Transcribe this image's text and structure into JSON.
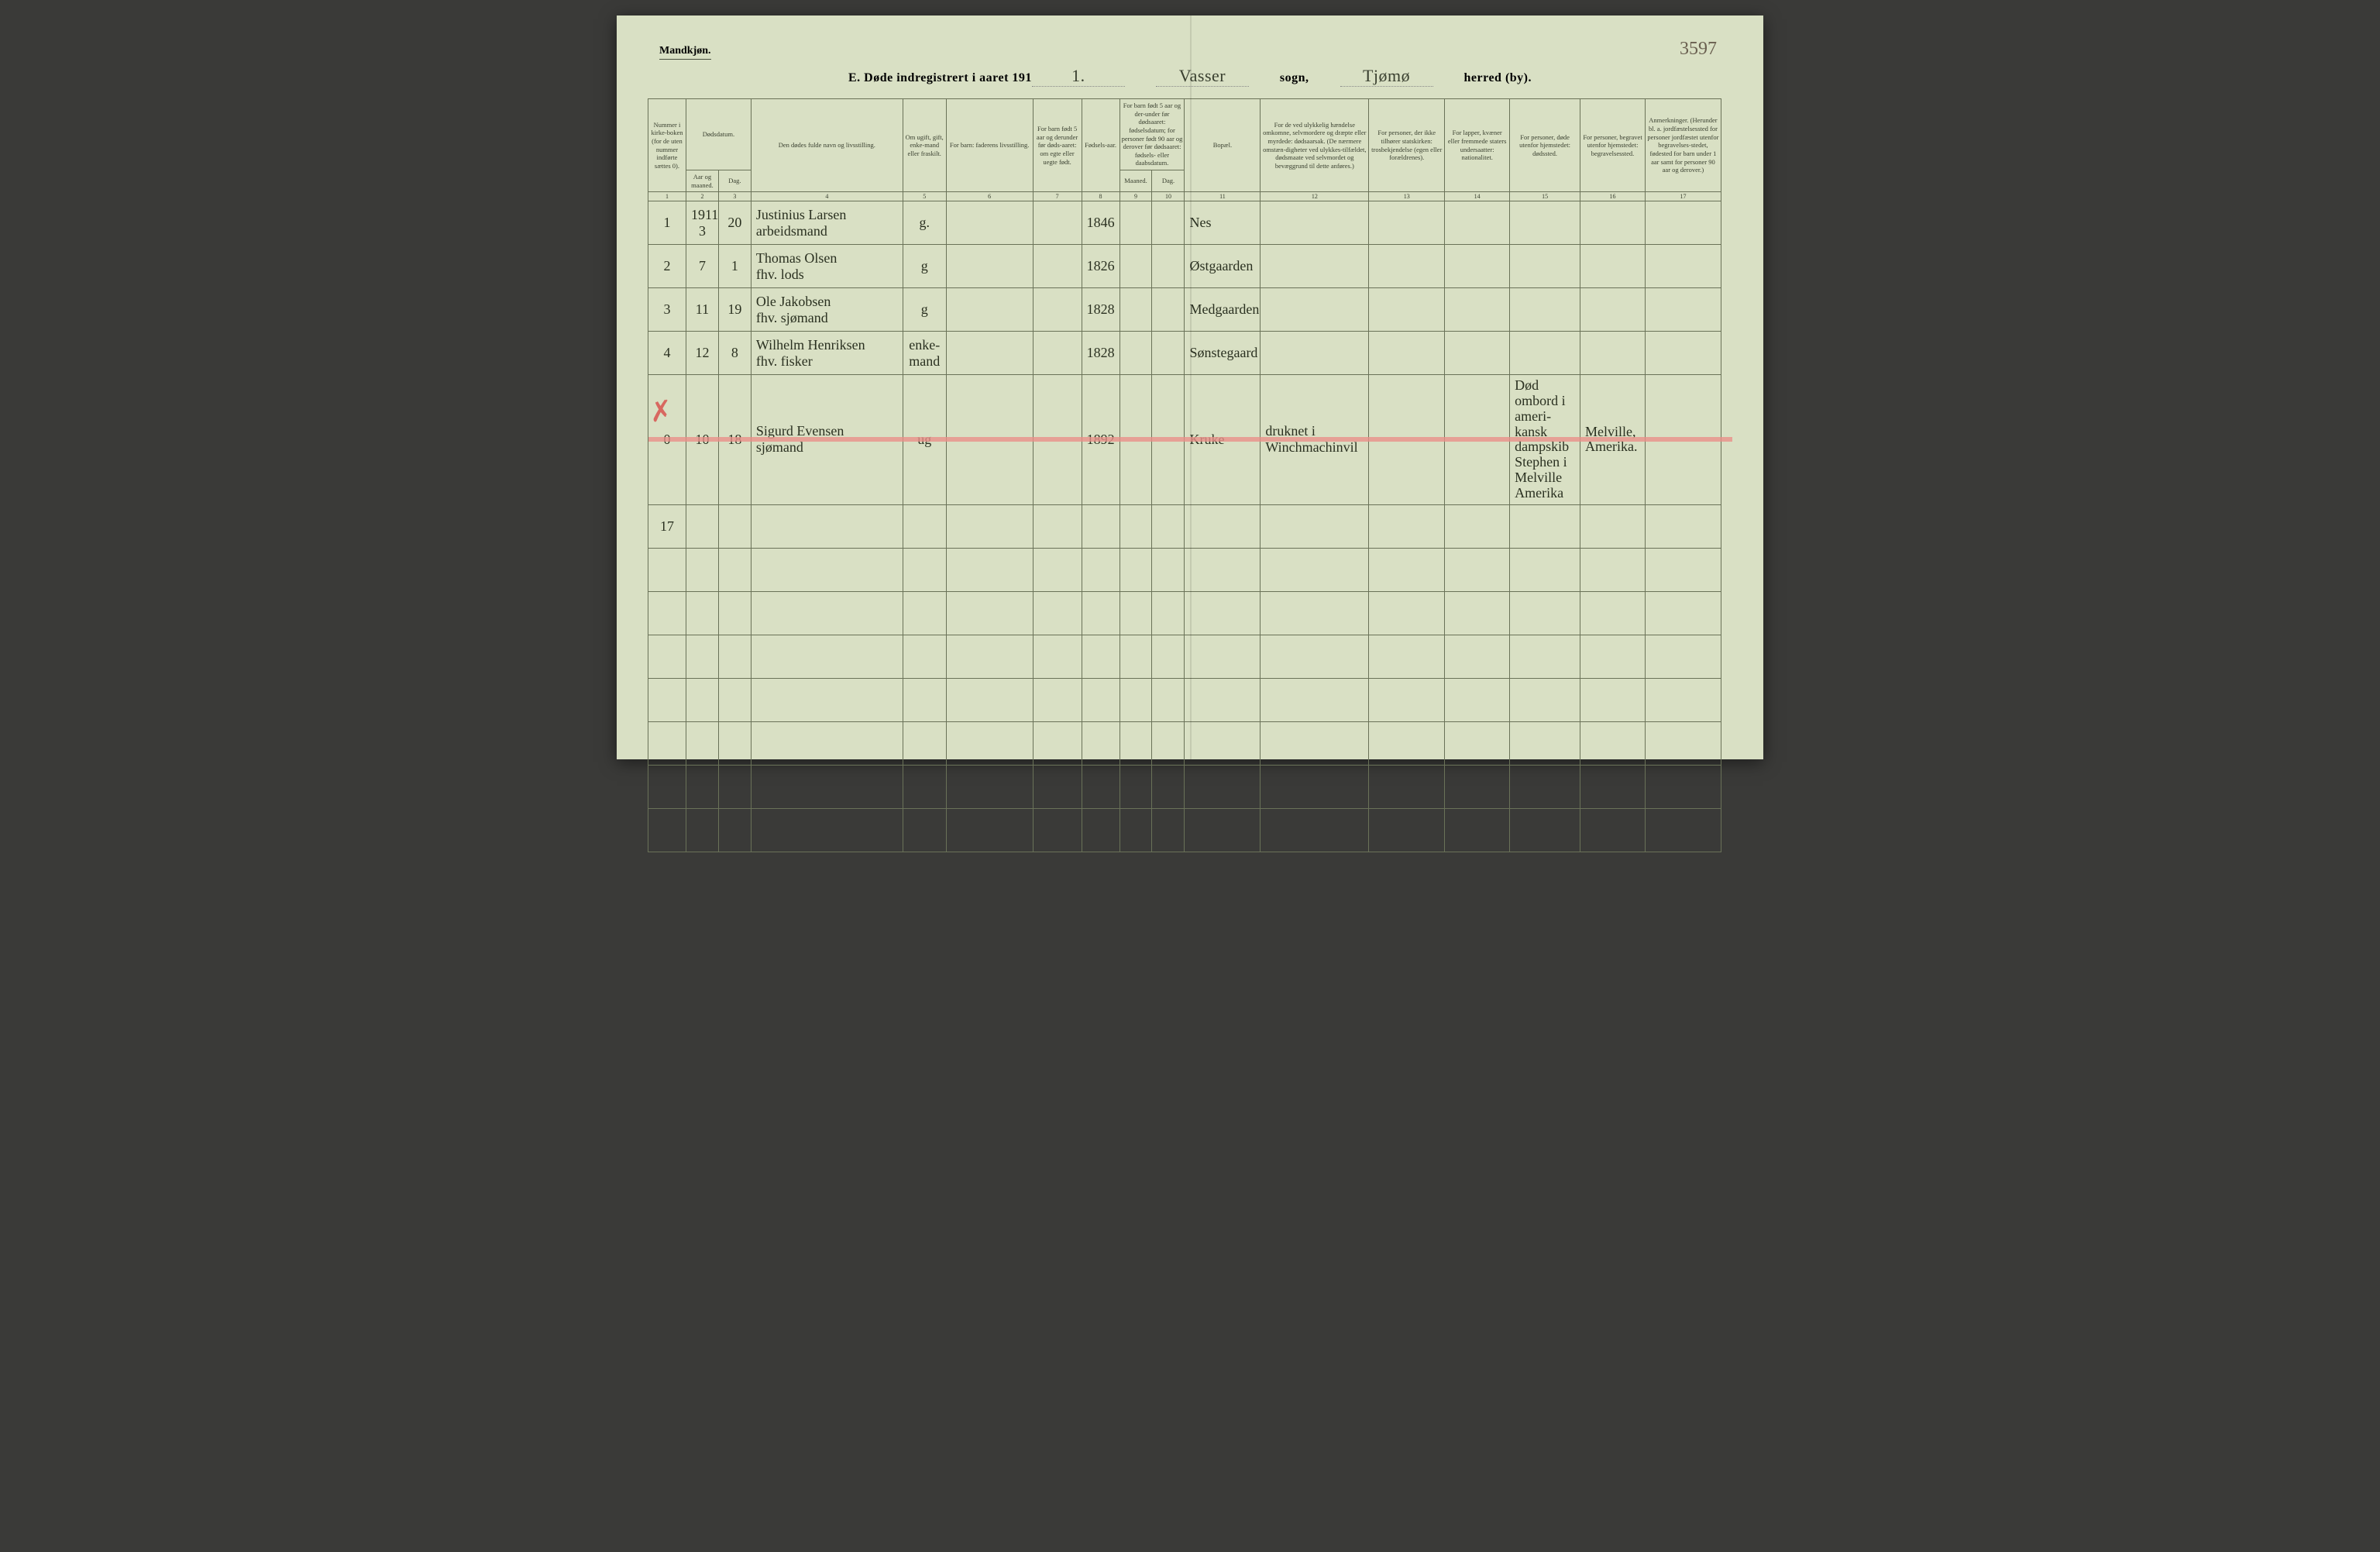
{
  "corner_label": "Mandkjøn.",
  "page_number": "3597",
  "title": {
    "prefix": "E.  Døde indregistrert i aaret 191",
    "year_suffix": "1.",
    "parish": "Vasser",
    "parish_label": "sogn,",
    "district": "Tjømø",
    "district_label": "herred (by)."
  },
  "headers": {
    "c1": "Nummer i kirke-boken (for de uten nummer indførte sættes 0).",
    "c2_group": "Dødsdatum.",
    "c2": "Aar og maaned.",
    "c3": "Dag.",
    "c4": "Den dødes fulde navn og livsstilling.",
    "c5": "Om ugift, gift, enke-mand eller fraskilt.",
    "c6": "For barn: faderens livsstilling.",
    "c7": "For barn født 5 aar og derunder før døds-aaret: om egte eller uegte født.",
    "c8": "Fødsels-aar.",
    "c9_group": "For barn født 5 aar og der-under før dødsaaret: fødselsdatum; for personer født 90 aar og derover før dødsaaret: fødsels- eller daabsdatum.",
    "c9": "Maaned.",
    "c10": "Dag.",
    "c11": "Bopæl.",
    "c12": "For de ved ulykkelig hændelse omkomne, selvmordere og dræpte eller myrdede: dødsaarsak. (De nærmere omstæn-digheter ved ulykkes-tilfældet, dødsmaate ved selvmordet og bevæggrund til dette anføres.)",
    "c13": "For personer, der ikke tilhører statskirken: trosbekjendelse (egen eller forældrenes).",
    "c14": "For lapper, kvæner eller fremmede staters undersaatter: nationalitet.",
    "c15": "For personer, døde utenfor hjemstedet: dødssted.",
    "c16": "For personer, begravet utenfor hjemstedet: begravelsessted.",
    "c17": "Anmerkninger. (Herunder bl. a. jordfæstelsessted for personer jordfæstet utenfor begravelses-stedet, fødested for barn under 1 aar samt for personer 90 aar og derover.)"
  },
  "colnums": [
    "1",
    "2",
    "3",
    "4",
    "5",
    "6",
    "7",
    "8",
    "9",
    "10",
    "11",
    "12",
    "13",
    "14",
    "15",
    "16",
    "17"
  ],
  "rows": [
    {
      "num": "1",
      "year_month": "1911\n3",
      "day": "20",
      "name": "Justinius Larsen\narbeidsmand",
      "status": "g.",
      "birth_year": "1846",
      "residence": "Nes",
      "struck": false
    },
    {
      "num": "2",
      "year_month": "7",
      "day": "1",
      "name": "Thomas Olsen\nfhv. lods",
      "status": "g",
      "birth_year": "1826",
      "residence": "Østgaarden",
      "struck": false
    },
    {
      "num": "3",
      "year_month": "11",
      "day": "19",
      "name": "Ole Jakobsen\nfhv. sjømand",
      "status": "g",
      "birth_year": "1828",
      "residence": "Medgaarden",
      "struck": false
    },
    {
      "num": "4",
      "year_month": "12",
      "day": "8",
      "name": "Wilhelm Henriksen\nfhv. fisker",
      "status": "enke-mand",
      "birth_year": "1828",
      "residence": "Sønstegaard",
      "struck": false
    },
    {
      "num": "0",
      "year_month": "10",
      "day": "18",
      "name": "Sigurd Evensen\nsjømand",
      "status": "ug",
      "birth_year": "1892",
      "residence": "Kruke",
      "cause": "druknet i Winchmachinvil",
      "death_place": "Død ombord i ameri-kansk dampskib Stephen i Melville Amerika",
      "burial_place": "Melville, Amerika.",
      "struck": true
    },
    {
      "num": "17",
      "year_month": "",
      "day": "",
      "name": "",
      "status": "",
      "birth_year": "",
      "residence": "",
      "struck": false
    }
  ],
  "empty_row_count": 7,
  "colors": {
    "paper": "#d9e0c4",
    "ink": "#3a4030",
    "rule": "#6a7258",
    "strike": "#e8908a",
    "handwriting": "#2a3020"
  }
}
